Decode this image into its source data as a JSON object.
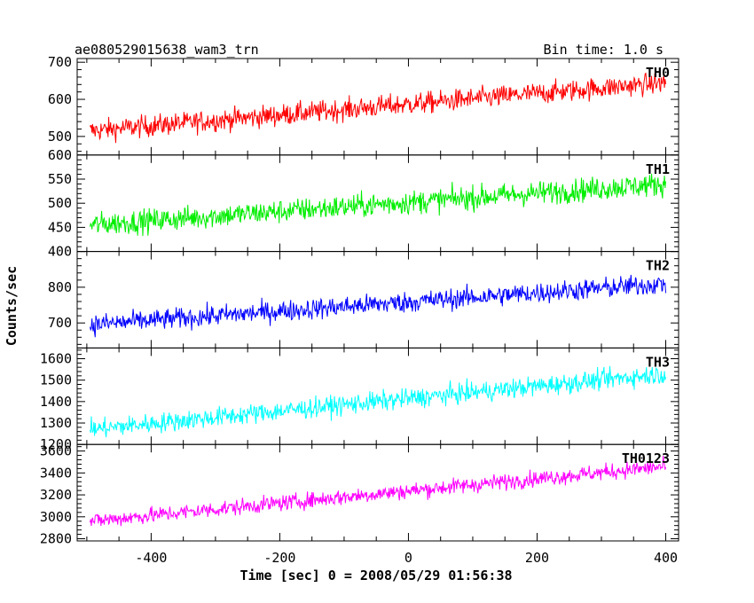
{
  "header": {
    "left_title": "ae080529015638_wam3_trn",
    "right_title": "Bin time: 1.0 s"
  },
  "chart_data": {
    "type": "line",
    "title": "ae080529015638_wam3_trn",
    "subtitle": "Bin time: 1.0 s",
    "xlabel": "Time [sec] 0 = 2008/05/29 01:56:38",
    "ylabel": "Counts/sec",
    "xlim": [
      -515,
      420
    ],
    "x_ticks": [
      -400,
      -200,
      0,
      200,
      400
    ],
    "x_range_data": [
      -495,
      400
    ],
    "bin_time": 1.0,
    "legend": "none",
    "grid": false,
    "panels": [
      {
        "name": "TH0",
        "color": "#ff0000",
        "ylim": [
          450,
          710
        ],
        "yticks": [
          500,
          600,
          700
        ],
        "trend_start": 515,
        "trend_end": 645,
        "noise_amplitude": 38
      },
      {
        "name": "TH1",
        "color": "#00ee00",
        "ylim": [
          400,
          600
        ],
        "yticks": [
          400,
          450,
          500,
          550,
          600
        ],
        "trend_start": 455,
        "trend_end": 540,
        "noise_amplitude": 32
      },
      {
        "name": "TH2",
        "color": "#0000ff",
        "ylim": [
          630,
          900
        ],
        "yticks": [
          700,
          800
        ],
        "trend_start": 695,
        "trend_end": 810,
        "noise_amplitude": 38
      },
      {
        "name": "TH3",
        "color": "#00ffff",
        "ylim": [
          1200,
          1650
        ],
        "yticks": [
          1200,
          1300,
          1400,
          1500,
          1600
        ],
        "trend_start": 1270,
        "trend_end": 1530,
        "noise_amplitude": 60
      },
      {
        "name": "TH0123",
        "color": "#ff00ff",
        "ylim": [
          2780,
          3660
        ],
        "yticks": [
          2800,
          3000,
          3200,
          3400,
          3600
        ],
        "trend_start": 2960,
        "trend_end": 3460,
        "noise_amplitude": 95
      }
    ]
  }
}
